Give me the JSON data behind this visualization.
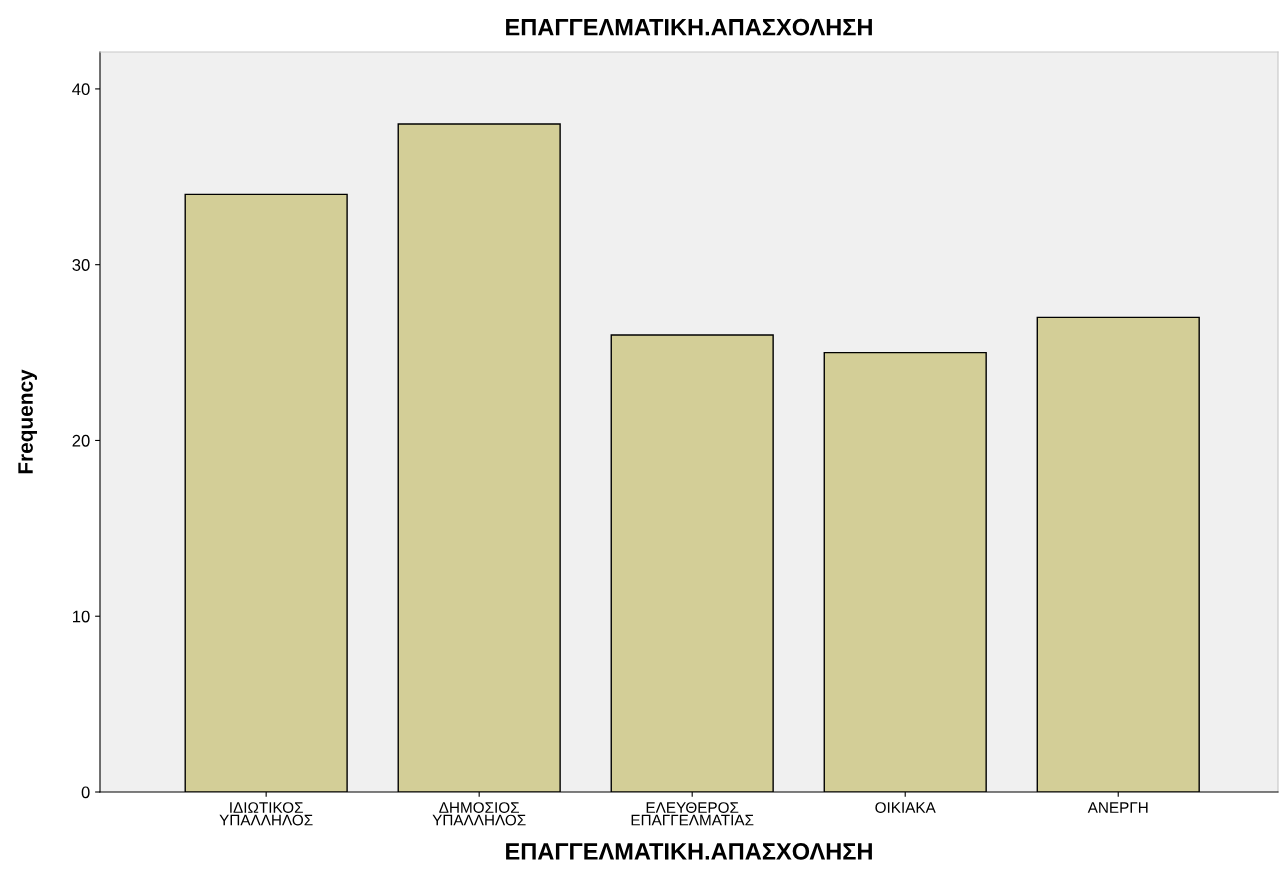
{
  "chart_data": {
    "type": "bar",
    "title": "ΕΠΑΓΓΕΛΜΑΤΙΚΗ.ΑΠΑΣΧΟΛΗΣΗ",
    "xlabel": "ΕΠΑΓΓΕΛΜΑΤΙΚΗ.ΑΠΑΣΧΟΛΗΣΗ",
    "ylabel": "Frequency",
    "categories": [
      "ΙΔΙΩΤΙΚΟΣ\nΥΠΑΛΛΗΛΟΣ",
      "ΔΗΜΟΣΙΟΣ\nΥΠΑΛΛΗΛΟΣ",
      "ΕΛΕΥΘΕΡΟΣ\nΕΠΑΓΓΕΛΜΑΤΙΑΣ",
      "ΟΙΚΙΑΚΑ",
      "ΑΝΕΡΓΗ"
    ],
    "values": [
      34,
      38,
      26,
      25,
      27
    ],
    "color": "#d3ce97",
    "ylim": [
      0,
      42.1
    ],
    "yticks": [
      0,
      10,
      20,
      30,
      40
    ],
    "grid": false
  }
}
